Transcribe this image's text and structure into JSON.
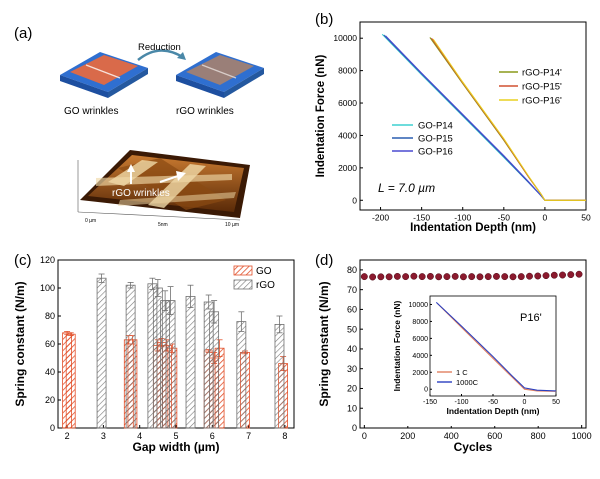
{
  "panels": [
    {
      "label": "(a)"
    },
    {
      "label": "(b)"
    },
    {
      "label": "(c)"
    },
    {
      "label": "(d)"
    }
  ],
  "schematic": {
    "reduction_label": "Reduction",
    "left_label": "GO wrinkles",
    "right_label": "rGO wrinkles",
    "afm_label": "rGO wrinkles",
    "afm_x_start": "0 µm",
    "afm_x_mid": "5nm",
    "afm_x_end": "10 µm",
    "colors": {
      "go_film": "#d96a4a",
      "rgo_film": "#9a7f78",
      "substrate": "#2f6fd0",
      "afm_base": "#7a3e0e"
    }
  },
  "chart_data": [
    {
      "panel": "(b)",
      "type": "line",
      "xlabel": "Indentation Depth (nm)",
      "ylabel": "Indentation Force (nN)",
      "xlim": [
        -225,
        50
      ],
      "ylim": [
        -600,
        11000
      ],
      "xticks": [
        -200,
        -150,
        -100,
        -50,
        0,
        50
      ],
      "yticks": [
        0,
        2000,
        4000,
        6000,
        8000,
        10000
      ],
      "annotation": "L = 7.0 µm",
      "series": [
        {
          "name": "GO-P14",
          "color": "#3fd0d0",
          "x": [
            -198,
            -150,
            -100,
            -50,
            -20,
            -5,
            0,
            50
          ],
          "y": [
            10250,
            7750,
            5200,
            2650,
            1100,
            300,
            0,
            0
          ]
        },
        {
          "name": "GO-P15",
          "color": "#2a5fb0",
          "x": [
            -196,
            -150,
            -100,
            -50,
            -20,
            -5,
            0,
            50
          ],
          "y": [
            10200,
            7800,
            5250,
            2700,
            1100,
            300,
            0,
            0
          ]
        },
        {
          "name": "GO-P16",
          "color": "#4a4ad0",
          "x": [
            -194,
            -150,
            -100,
            -50,
            -20,
            -5,
            0,
            50
          ],
          "y": [
            10150,
            7850,
            5300,
            2750,
            1150,
            300,
            0,
            0
          ]
        },
        {
          "name": "rGO-P14'",
          "color": "#8a9a1a",
          "x": [
            -140,
            -100,
            -50,
            -20,
            -5,
            0,
            50
          ],
          "y": [
            10050,
            7200,
            3700,
            1450,
            400,
            0,
            0
          ]
        },
        {
          "name": "rGO-P15'",
          "color": "#d05030",
          "x": [
            -138,
            -100,
            -50,
            -20,
            -5,
            0,
            50
          ],
          "y": [
            10000,
            7250,
            3750,
            1450,
            400,
            0,
            0
          ]
        },
        {
          "name": "rGO-P16'",
          "color": "#e8d020",
          "x": [
            -136,
            -100,
            -50,
            -20,
            -5,
            0,
            50
          ],
          "y": [
            9950,
            7300,
            3800,
            1500,
            400,
            0,
            0
          ]
        }
      ]
    },
    {
      "panel": "(c)",
      "type": "bar",
      "xlabel": "Gap width (µm)",
      "ylabel": "Spring constant (N/m)",
      "xlim": [
        1.75,
        8.25
      ],
      "ylim": [
        0,
        120
      ],
      "xticks": [
        2,
        3,
        4,
        5,
        6,
        7,
        8
      ],
      "yticks": [
        0,
        20,
        40,
        60,
        80,
        100,
        120
      ],
      "series": [
        {
          "name": "GO",
          "color": "#e2502a",
          "hatch": "#e2502a",
          "x": [
            2.0,
            2.1,
            3.7,
            3.8,
            4.5,
            4.6,
            4.75,
            4.9,
            5.9,
            6.05,
            6.2,
            6.9,
            7.95
          ],
          "y": [
            68,
            67,
            63,
            63,
            59,
            61,
            59,
            57,
            55,
            50,
            57,
            54,
            46
          ],
          "err": [
            1,
            1,
            3,
            3,
            4,
            3,
            4,
            3,
            1,
            4,
            6,
            1,
            5
          ]
        },
        {
          "name": "rGO",
          "color": "#707070",
          "hatch": "#707070",
          "x": [
            2.95,
            3.75,
            4.35,
            4.5,
            4.7,
            4.85,
            5.4,
            5.9,
            6.05,
            6.8,
            7.85
          ],
          "y": [
            107,
            102,
            103,
            100,
            91,
            91,
            94,
            90,
            83,
            76,
            74
          ],
          "err": [
            3,
            2,
            4,
            6,
            7,
            10,
            8,
            5,
            8,
            7,
            6
          ]
        }
      ],
      "legend": "top-right"
    },
    {
      "panel": "(d)",
      "type": "scatter",
      "xlabel": "Cycles",
      "ylabel": "Spring constant (N/m)",
      "xlim": [
        -20,
        1020
      ],
      "ylim": [
        0,
        85
      ],
      "xticks": [
        0,
        200,
        400,
        600,
        800,
        1000
      ],
      "yticks": [
        0,
        10,
        20,
        30,
        40,
        50,
        60,
        70,
        80
      ],
      "marker_color": "#8b1a2e",
      "series": [
        {
          "name": "",
          "x": [
            0,
            38,
            76,
            114,
            152,
            190,
            228,
            266,
            304,
            342,
            380,
            418,
            456,
            494,
            532,
            570,
            608,
            646,
            684,
            722,
            760,
            798,
            836,
            874,
            912,
            950,
            988
          ],
          "y": [
            76.6,
            76.4,
            76.5,
            76.5,
            76.7,
            76.6,
            76.8,
            76.6,
            76.7,
            76.5,
            76.6,
            76.7,
            76.5,
            76.6,
            76.5,
            76.6,
            76.7,
            76.6,
            76.5,
            76.6,
            76.8,
            76.9,
            77.1,
            77.3,
            77.4,
            77.6,
            77.8
          ]
        }
      ],
      "inset": {
        "type": "line",
        "xlabel": "Indentation Depth (nm)",
        "ylabel": "Indentation Force (nN)",
        "xlim": [
          -150,
          50
        ],
        "ylim": [
          -800,
          11000
        ],
        "xticks": [
          -150,
          -100,
          -50,
          0,
          50
        ],
        "yticks": [
          0,
          2000,
          4000,
          6000,
          8000,
          10000
        ],
        "annotation": "P16'",
        "series": [
          {
            "name": "1  C",
            "color": "#e08060",
            "x": [
              -138,
              -100,
              -50,
              -20,
              0,
              20,
              50
            ],
            "y": [
              10100,
              7300,
              3650,
              1450,
              0,
              -200,
              -250
            ]
          },
          {
            "name": "1000C",
            "color": "#2a3fc0",
            "x": [
              -140,
              -100,
              -50,
              -20,
              0,
              20,
              50
            ],
            "y": [
              10250,
              7450,
              3850,
              1600,
              150,
              -120,
              -200
            ]
          }
        ]
      }
    }
  ]
}
